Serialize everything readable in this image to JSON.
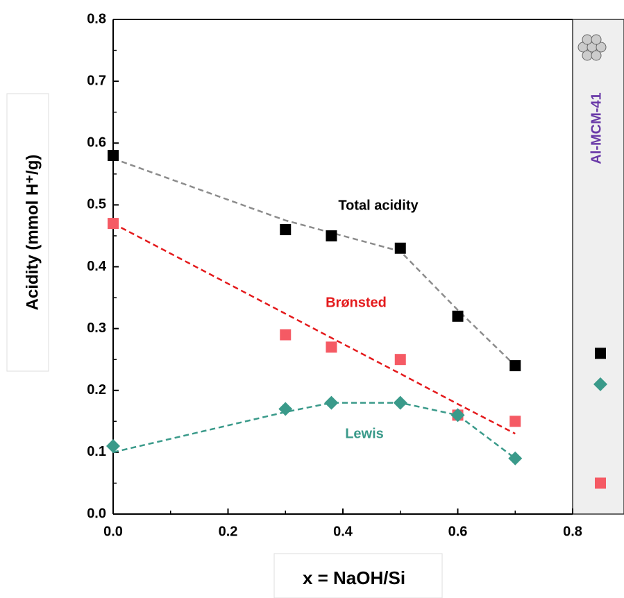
{
  "chart_data": {
    "type": "scatter",
    "x_label": "x  = NaOH/Si",
    "y_label": "Acidity (mmol H⁺/g)",
    "x": [
      0,
      0.3,
      0.38,
      0.5,
      0.6,
      0.7
    ],
    "series": [
      {
        "name": "Total acidity",
        "color": "#000000",
        "marker": "square",
        "fit_color": "#8c8c8c",
        "values": [
          0.58,
          0.46,
          0.45,
          0.43,
          0.32,
          0.24
        ],
        "fit_values": [
          0.575,
          0.475,
          0.455,
          0.425,
          0.33,
          0.24
        ]
      },
      {
        "name": "Brønsted",
        "color": "#f55a64",
        "marker": "square",
        "fit_color": "#e41a1c",
        "values": [
          0.47,
          0.29,
          0.27,
          0.25,
          0.16,
          0.15
        ],
        "fit_values": [
          0.47,
          0.324,
          0.285,
          0.227,
          0.178,
          0.13
        ]
      },
      {
        "name": "Lewis",
        "color": "#3a9a8a",
        "marker": "diamond",
        "fit_color": "#3a9a8a",
        "values": [
          0.11,
          0.17,
          0.18,
          0.18,
          0.16,
          0.09
        ],
        "fit_values": [
          0.1,
          0.165,
          0.18,
          0.18,
          0.16,
          0.09
        ]
      }
    ],
    "reference": {
      "label": "Al-MCM-41",
      "color": "#6a3aa8",
      "values": [
        0.26,
        0.05,
        0.21
      ]
    },
    "xlim": [
      0,
      0.8
    ],
    "ylim": [
      0,
      0.8
    ],
    "xticks": [
      {
        "value": 0,
        "label": "0.0"
      },
      0.2,
      0.4,
      0.6,
      0.8
    ],
    "yticks": [
      {
        "value": 0,
        "label": "0.0"
      },
      0.1,
      0.2,
      0.3,
      0.4,
      0.5,
      0.6,
      0.7,
      0.8
    ]
  }
}
